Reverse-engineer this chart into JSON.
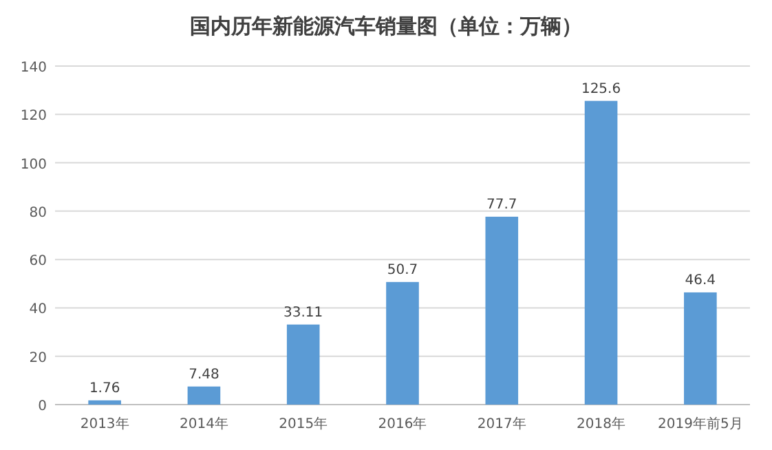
{
  "chart_data": {
    "type": "bar",
    "title": "国内历年新能源汽车销量图（单位：万辆）",
    "categories": [
      "2013年",
      "2014年",
      "2015年",
      "2016年",
      "2017年",
      "2018年",
      "2019年前5月"
    ],
    "values": [
      1.76,
      7.48,
      33.11,
      50.7,
      77.7,
      125.6,
      46.4
    ],
    "value_labels": [
      "1.76",
      "7.48",
      "33.11",
      "50.7",
      "77.7",
      "125.6",
      "46.4"
    ],
    "color": "#5b9bd5",
    "ylim": [
      0,
      140
    ],
    "yticks": [
      0,
      20,
      40,
      60,
      80,
      100,
      120,
      140
    ],
    "grid": "y"
  }
}
